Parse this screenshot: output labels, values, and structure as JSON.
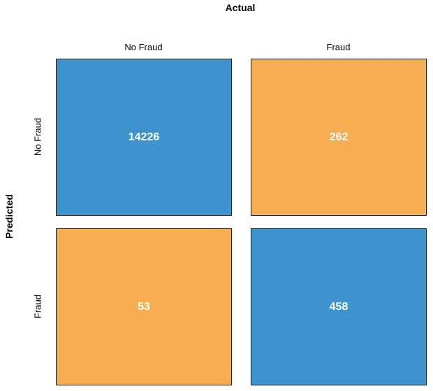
{
  "chart_data": {
    "type": "heatmap",
    "title": "",
    "xlabel": "Actual",
    "ylabel": "Predicted",
    "x_categories": [
      "No Fraud",
      "Fraud"
    ],
    "y_categories": [
      "No Fraud",
      "Fraud"
    ],
    "values": [
      [
        14226,
        262
      ],
      [
        53,
        458
      ]
    ],
    "colors": {
      "correct": "#3d94cf",
      "incorrect": "#f7ad52"
    },
    "value_labels": {
      "r0c0": "14226",
      "r0c1": "262",
      "r1c0": "53",
      "r1c1": "458"
    }
  }
}
